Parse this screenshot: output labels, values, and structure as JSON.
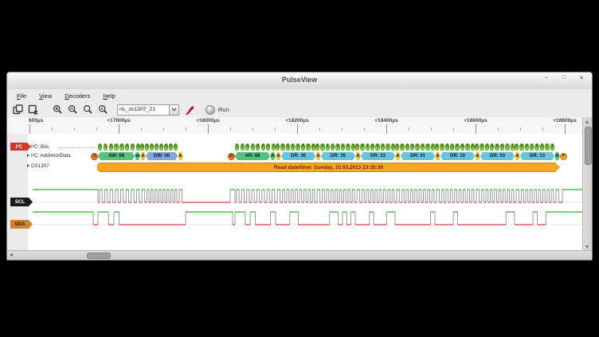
{
  "window": {
    "title": "PulseView",
    "controls": {
      "minimize": "–",
      "maximize": "□",
      "close": "✕"
    }
  },
  "menubar": {
    "items": [
      "File",
      "View",
      "Decoders",
      "Help"
    ]
  },
  "toolbar": {
    "session_file": "rtc_ds1307_21",
    "run_label": "Run",
    "icons": [
      "new-session-icon",
      "new-view-icon",
      "zoom-in-icon",
      "zoom-out-icon",
      "zoom-fit-icon",
      "zoom-one-to-one-icon",
      "add-decoder-probe-icon",
      "run-icon"
    ]
  },
  "ruler": {
    "labels": [
      "600µs",
      "+17800µs",
      "+18000µs",
      "+18200µs",
      "+18400µs",
      "+18600µs",
      "+18800µs"
    ]
  },
  "decoder": {
    "tag": "I²C",
    "rows": [
      "I²C: Bits",
      "I²C: Address/Data",
      "DS1307"
    ],
    "bits_groups": [
      "11010000",
      "00000000",
      "11010001",
      "00110000",
      "00110101",
      "00100011",
      "00000001",
      "00010000",
      "00000011",
      "00010011"
    ],
    "annotations": [
      {
        "kind": "start",
        "label": "S"
      },
      {
        "kind": "addr-write",
        "label": "AW: 68"
      },
      {
        "kind": "bit-write",
        "label": "W"
      },
      {
        "kind": "ack",
        "label": "A"
      },
      {
        "kind": "data-write",
        "label": "DW: 00"
      },
      {
        "kind": "ack",
        "label": "A"
      },
      {
        "kind": "gap",
        "label": ""
      },
      {
        "kind": "start-repeat",
        "label": "Sr"
      },
      {
        "kind": "addr-read",
        "label": "AR: 68"
      },
      {
        "kind": "bit-read",
        "label": "R"
      },
      {
        "kind": "ack",
        "label": "A"
      },
      {
        "kind": "data-read",
        "label": "DR: 30"
      },
      {
        "kind": "ack",
        "label": "A"
      },
      {
        "kind": "data-read",
        "label": "DR: 35"
      },
      {
        "kind": "ack",
        "label": "A"
      },
      {
        "kind": "data-read",
        "label": "DR: 23"
      },
      {
        "kind": "ack",
        "label": "A"
      },
      {
        "kind": "data-read",
        "label": "DR: 01"
      },
      {
        "kind": "ack",
        "label": "A"
      },
      {
        "kind": "data-read",
        "label": "DR: 10"
      },
      {
        "kind": "ack",
        "label": "A"
      },
      {
        "kind": "data-read",
        "label": "DR: 03"
      },
      {
        "kind": "ack",
        "label": "A"
      },
      {
        "kind": "data-read",
        "label": "DR: 13"
      },
      {
        "kind": "nack",
        "label": "N"
      },
      {
        "kind": "stop",
        "label": "P"
      }
    ],
    "ds1307_text": "Read date/time: Sunday, 10.03.2013 23:35:30"
  },
  "signals": [
    {
      "label": "SCL"
    },
    {
      "label": "SDA",
      "selected": true
    }
  ],
  "colors": {
    "bit_green": "#8ed04a",
    "addr_green": "#55c37e",
    "ack_yellow": "#e5c43c",
    "data_write_blue": "#7fa8dc",
    "data_read_cyan": "#67c4dd",
    "start_orange": "#ec7730",
    "stop_orange": "#f0ad2c",
    "ds_bar_orange": "#f6a623",
    "wave_high": "#35b135",
    "wave_low": "#cc4343",
    "wave_edge": "#9a9a9a",
    "i2c_tag_red": "#cf3b2e",
    "scl_tag_black": "#1a1a1a",
    "sda_tag_amber": "#c9882f"
  }
}
